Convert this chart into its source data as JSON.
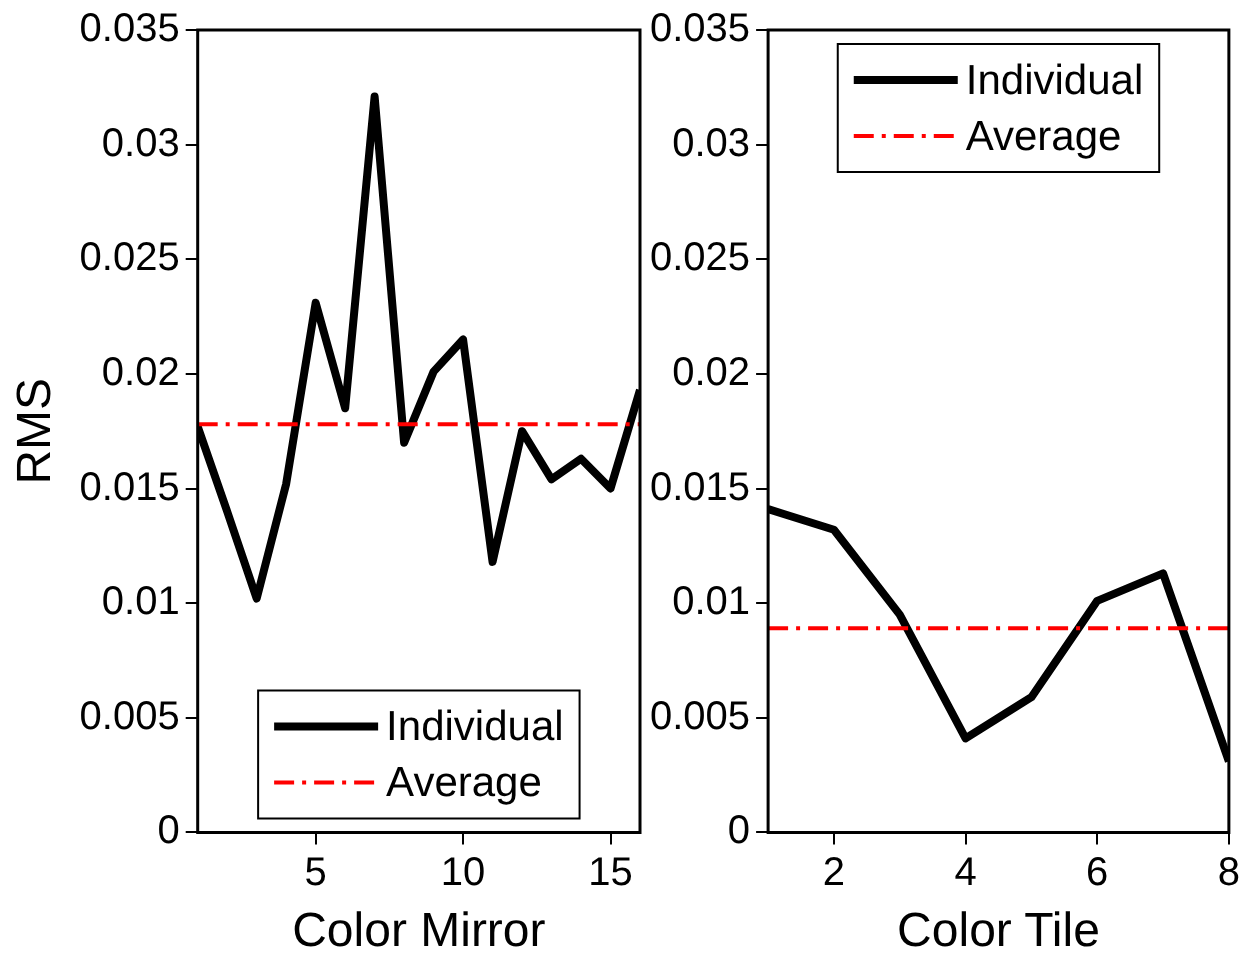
{
  "chart_data": [
    {
      "type": "line",
      "xlabel": "Color Mirror",
      "ylabel": "RMS",
      "xlim": [
        1,
        16
      ],
      "xticks": [
        5,
        10,
        15
      ],
      "ylim": [
        0,
        0.035
      ],
      "yticks": [
        0,
        0.005,
        0.01,
        0.015,
        0.02,
        0.025,
        0.03,
        0.035
      ],
      "grid": false,
      "legend": "bottom",
      "marker": "none",
      "series": [
        {
          "name": "Individual",
          "color": "#000000",
          "line_style": "solid",
          "x": [
            1,
            2,
            3,
            4,
            5,
            6,
            7,
            8,
            9,
            10,
            11,
            12,
            13,
            14,
            15,
            16
          ],
          "values": [
            0.0177,
            0.014,
            0.0102,
            0.0152,
            0.0231,
            0.0185,
            0.0321,
            0.017,
            0.0201,
            0.0215,
            0.0118,
            0.0175,
            0.0154,
            0.0163,
            0.015,
            0.0193
          ]
        },
        {
          "name": "Average",
          "color": "#ff0000",
          "line_style": "dashed",
          "x": [
            1,
            16
          ],
          "values": [
            0.0178,
            0.0178
          ]
        }
      ]
    },
    {
      "type": "line",
      "xlabel": "Color Tile",
      "xlim": [
        1,
        8
      ],
      "xticks": [
        2,
        4,
        6,
        8
      ],
      "ylim": [
        0,
        0.035
      ],
      "yticks": [
        0,
        0.005,
        0.01,
        0.015,
        0.02,
        0.025,
        0.03,
        0.035
      ],
      "grid": false,
      "legend": "top",
      "marker": "none",
      "series": [
        {
          "name": "Individual",
          "color": "#000000",
          "line_style": "solid",
          "x": [
            1,
            2,
            3,
            4,
            5,
            6,
            7,
            8
          ],
          "values": [
            0.0141,
            0.0132,
            0.0095,
            0.0041,
            0.0059,
            0.0101,
            0.0113,
            0.0031
          ]
        },
        {
          "name": "Average",
          "color": "#ff0000",
          "line_style": "dashed",
          "x": [
            1,
            8
          ],
          "values": [
            0.0089,
            0.0089
          ]
        }
      ]
    }
  ]
}
